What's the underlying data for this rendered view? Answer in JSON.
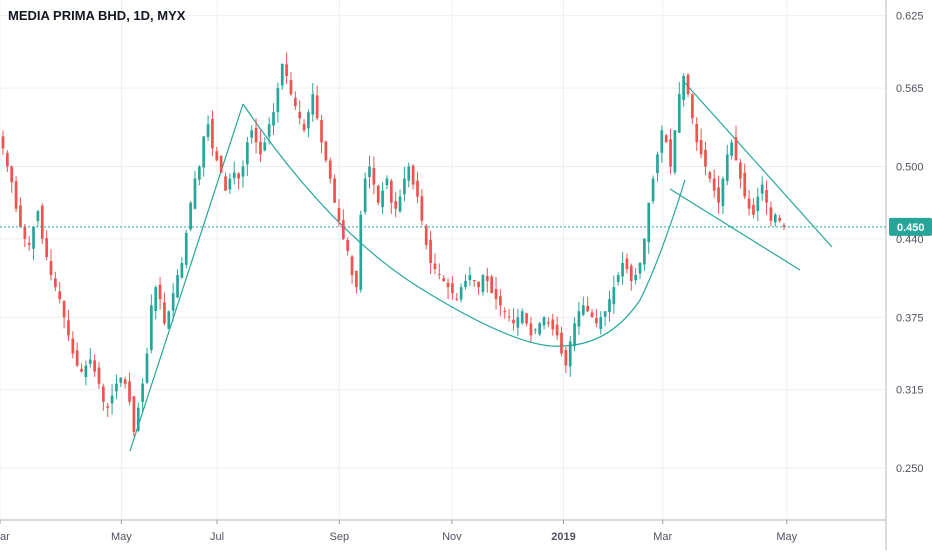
{
  "colors": {
    "up": "#26a69a",
    "down": "#ef5350",
    "grid": "#eceff2",
    "axis_text": "#50535e",
    "price_line": "#26a69a",
    "drawing": "#26a69a",
    "price_tag_bg": "#26a69a",
    "price_tag_text": "#ffffff"
  },
  "chart_data": {
    "type": "candlestick",
    "title": "MEDIA PRIMA BHD, 1D, MYX",
    "y_ticks": [
      "0.625",
      "0.565",
      "0.500",
      "0.440",
      "0.375",
      "0.315",
      "0.250"
    ],
    "y_tick_values": [
      0.625,
      0.565,
      0.5,
      0.44,
      0.375,
      0.315,
      0.25
    ],
    "x_ticks": [
      "ar",
      "May",
      "Jul",
      "Sep",
      "Nov",
      "2019",
      "Mar",
      "May"
    ],
    "ylim": [
      0.207,
      0.638
    ],
    "current_price": 0.45,
    "current_price_label": "0.450",
    "close_series": [
      0.515,
      0.5,
      0.487,
      0.465,
      0.45,
      0.44,
      0.435,
      0.45,
      0.463,
      0.44,
      0.425,
      0.41,
      0.4,
      0.39,
      0.375,
      0.36,
      0.345,
      0.335,
      0.33,
      0.335,
      0.34,
      0.33,
      0.32,
      0.305,
      0.3,
      0.31,
      0.32,
      0.325,
      0.32,
      0.305,
      0.28,
      0.3,
      0.32,
      0.345,
      0.385,
      0.4,
      0.39,
      0.37,
      0.38,
      0.395,
      0.41,
      0.42,
      0.445,
      0.47,
      0.49,
      0.5,
      0.525,
      0.535,
      0.515,
      0.505,
      0.495,
      0.48,
      0.49,
      0.495,
      0.49,
      0.5,
      0.52,
      0.53,
      0.52,
      0.51,
      0.52,
      0.535,
      0.545,
      0.565,
      0.585,
      0.575,
      0.56,
      0.55,
      0.54,
      0.53,
      0.545,
      0.56,
      0.54,
      0.52,
      0.505,
      0.49,
      0.47,
      0.455,
      0.44,
      0.43,
      0.41,
      0.4,
      0.46,
      0.49,
      0.5,
      0.485,
      0.47,
      0.48,
      0.49,
      0.47,
      0.465,
      0.475,
      0.49,
      0.5,
      0.485,
      0.475,
      0.455,
      0.435,
      0.42,
      0.415,
      0.41,
      0.405,
      0.4,
      0.395,
      0.39,
      0.4,
      0.405,
      0.41,
      0.405,
      0.4,
      0.41,
      0.405,
      0.395,
      0.39,
      0.385,
      0.38,
      0.375,
      0.37,
      0.375,
      0.38,
      0.37,
      0.36,
      0.365,
      0.37,
      0.375,
      0.37,
      0.365,
      0.36,
      0.345,
      0.335,
      0.355,
      0.37,
      0.38,
      0.385,
      0.38,
      0.375,
      0.37,
      0.375,
      0.38,
      0.39,
      0.4,
      0.41,
      0.42,
      0.415,
      0.405,
      0.41,
      0.42,
      0.44,
      0.47,
      0.49,
      0.51,
      0.53,
      0.52,
      0.5,
      0.53,
      0.56,
      0.575,
      0.56,
      0.54,
      0.52,
      0.51,
      0.5,
      0.49,
      0.48,
      0.47,
      0.49,
      0.51,
      0.52,
      0.505,
      0.49,
      0.475,
      0.465,
      0.46,
      0.475,
      0.485,
      0.47,
      0.455,
      0.46,
      0.455,
      0.45
    ]
  }
}
